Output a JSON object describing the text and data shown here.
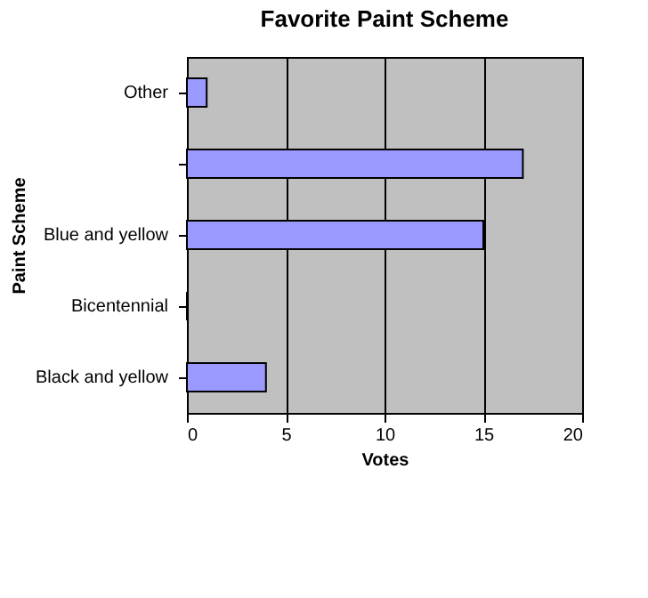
{
  "chart_data": {
    "type": "bar",
    "orientation": "horizontal",
    "title": "Favorite Paint Scheme",
    "xlabel": "Votes",
    "ylabel": "Paint Scheme",
    "categories": [
      "Other",
      null,
      "Blue and yellow",
      "Bicentennial",
      "Black and yellow"
    ],
    "values": [
      1,
      17,
      15,
      0,
      4
    ],
    "color": "#9999ff",
    "xlim": [
      0,
      20
    ],
    "xticks": [
      0,
      5,
      10,
      15,
      20
    ],
    "grid": "x"
  }
}
